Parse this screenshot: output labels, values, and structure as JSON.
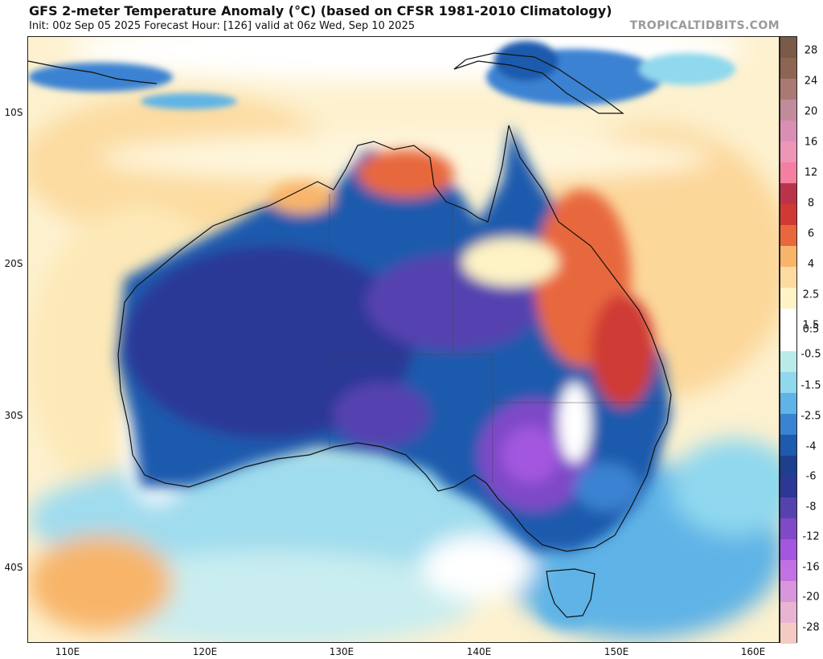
{
  "header": {
    "title": "GFS 2-meter Temperature Anomaly (°C) (based on CFSR 1981-2010 Climatology)",
    "subtitle": "Init: 00z Sep 05 2025   Forecast Hour: [126]   valid at 06z Wed, Sep 10 2025",
    "credit": "TROPICALTIDBITS.COM"
  },
  "map": {
    "lat_labels": [
      "10S",
      "20S",
      "30S",
      "40S"
    ],
    "lon_labels": [
      "110E",
      "120E",
      "130E",
      "140E",
      "150E",
      "160E"
    ]
  },
  "colorbar": {
    "labels": [
      "28",
      "24",
      "20",
      "16",
      "12",
      "8",
      "6",
      "4",
      "2.5",
      "1.5",
      "0.5",
      "0.5",
      "-0.5",
      "-1.5",
      "-2.5",
      "-4",
      "-6",
      "-8",
      "-12",
      "-16",
      "-20",
      "-28"
    ],
    "colors": [
      "#7a5a48",
      "#8e6452",
      "#a97a72",
      "#c28b9b",
      "#d88fb3",
      "#ee96b8",
      "#f47fa0",
      "#b9334a",
      "#cf3a34",
      "#e8673d",
      "#f8b56a",
      "#fcdba0",
      "#fef3c4",
      "#ffffff",
      "#ffffff",
      "#b9ece9",
      "#8fd8ee",
      "#5fb3e6",
      "#3a82d2",
      "#1e5aad",
      "#1d3f8e",
      "#2c3796",
      "#5542b0",
      "#7f49c8",
      "#a356df",
      "#c271e4",
      "#d996dd",
      "#e8b4d2",
      "#f3cbc3"
    ]
  }
}
